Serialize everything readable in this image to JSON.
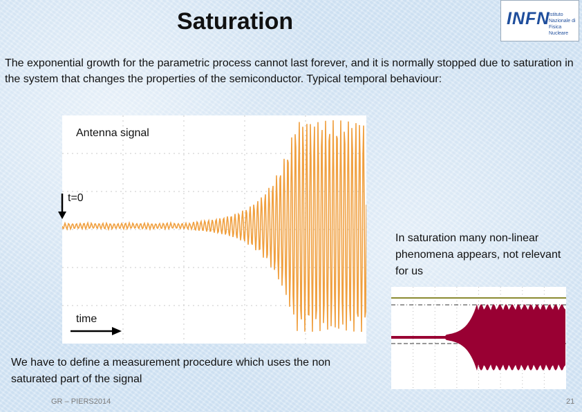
{
  "title": "Saturation",
  "logo": {
    "mark": "INFN",
    "subtitle": "Istituto Nazionale di Fisica Nucleare"
  },
  "intro_text": "The exponential growth for the parametric process cannot last forever, and it is normally stopped due to saturation in the system that changes the properties of the semiconductor. Typical temporal behaviour:",
  "figure": {
    "antenna_label": "Antenna signal",
    "t0_label": "t=0",
    "time_label": "time",
    "signal_color": "#f0a040"
  },
  "saturation_note": "In saturation many non-linear phenomena appears, not relevant for us",
  "inset": {
    "signal_color": "#990033",
    "trace_color": "#8a8a30"
  },
  "bottom_note": "We have to define a measurement procedure which uses the non saturated part of the signal",
  "footer": "GR – PIERS2014",
  "page_number": "21"
}
